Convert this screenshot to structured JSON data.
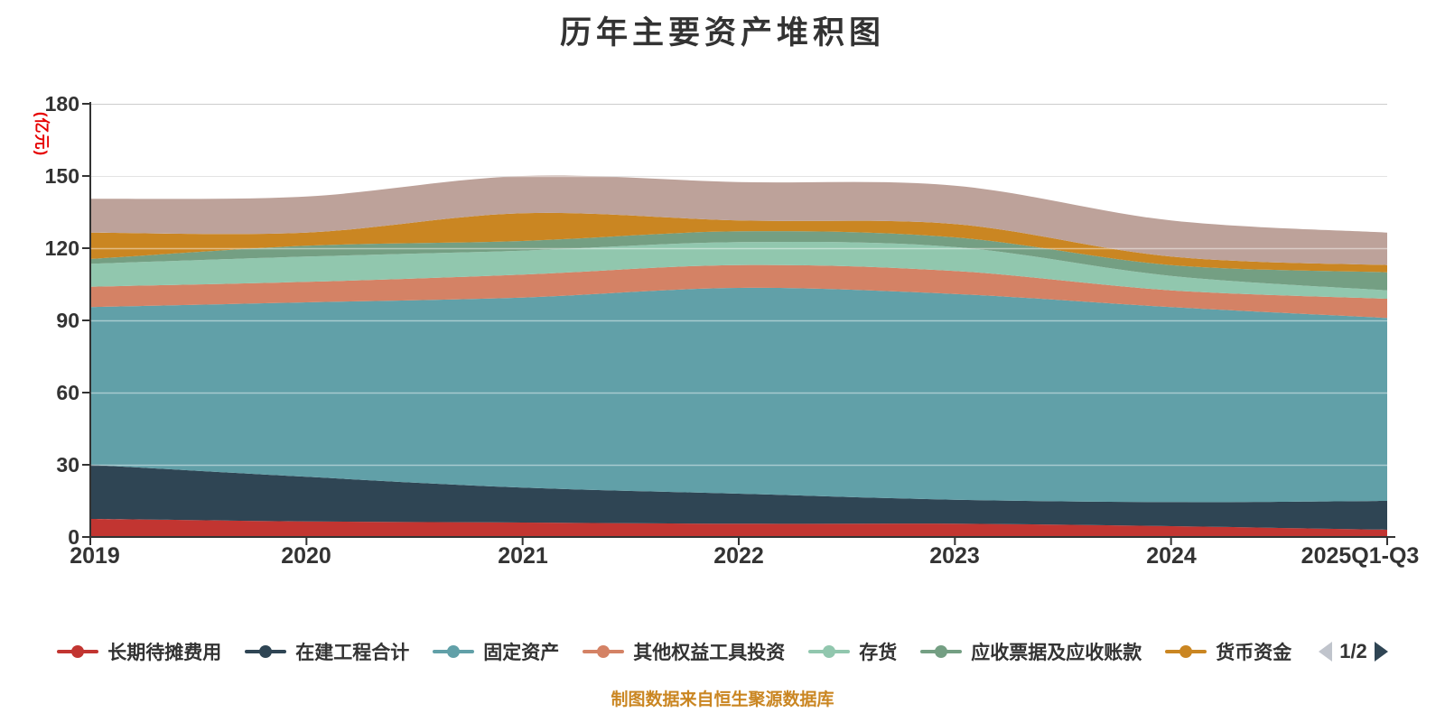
{
  "title": "历年主要资产堆积图",
  "y_axis": {
    "name": "(亿元)",
    "name_color": "#e60000",
    "tick_labels": [
      "0",
      "30",
      "60",
      "90",
      "120",
      "150",
      "180"
    ]
  },
  "x_axis": {
    "tick_labels": [
      "2019",
      "2020",
      "2021",
      "2022",
      "2023",
      "2024",
      "2025Q1-Q3"
    ]
  },
  "legend": {
    "items": [
      {
        "label": "长期待摊费用",
        "color": "#c23531"
      },
      {
        "label": "在建工程合计",
        "color": "#2f4554"
      },
      {
        "label": "固定资产",
        "color": "#61a0a8"
      },
      {
        "label": "其他权益工具投资",
        "color": "#d48265"
      },
      {
        "label": "存货",
        "color": "#91c7ae"
      },
      {
        "label": "应收票据及应收账款",
        "color": "#749f83"
      },
      {
        "label": "货币资金",
        "color": "#ca8622"
      }
    ],
    "pager": {
      "text": "1/2",
      "prev_color": "#c0c4cc",
      "next_color": "#2f4554"
    }
  },
  "footer": {
    "text": "制图数据来自恒生聚源数据库",
    "color": "#ca8622"
  },
  "chart_data": {
    "type": "area",
    "stacked": true,
    "smooth": true,
    "title": "历年主要资产堆积图",
    "ylabel": "(亿元)",
    "ylim": [
      0,
      180
    ],
    "y_tick_step": 30,
    "grid": true,
    "legend_position": "bottom",
    "categories": [
      "2019",
      "2020",
      "2021",
      "2022",
      "2023",
      "2024",
      "2025Q1-Q3"
    ],
    "series": [
      {
        "name": "长期待摊费用",
        "color": "#c23531",
        "values": [
          7.5,
          6.5,
          6,
          5.5,
          5.5,
          4.5,
          3
        ]
      },
      {
        "name": "在建工程合计",
        "color": "#2f4554",
        "values": [
          22.5,
          18.5,
          14.5,
          12.5,
          10,
          10,
          12
        ]
      },
      {
        "name": "固定资产",
        "color": "#61a0a8",
        "values": [
          65.5,
          72.5,
          79,
          85.5,
          85.5,
          81,
          76
        ]
      },
      {
        "name": "其他权益工具投资",
        "color": "#d48265",
        "values": [
          8.5,
          8.5,
          9.5,
          9.5,
          9.5,
          7,
          8
        ]
      },
      {
        "name": "存货",
        "color": "#91c7ae",
        "values": [
          9.5,
          10.5,
          10,
          9.5,
          10,
          6,
          3.5
        ]
      },
      {
        "name": "应收票据及应收账款",
        "color": "#749f83",
        "values": [
          2,
          4.5,
          4,
          4.5,
          4,
          4.5,
          7.5
        ]
      },
      {
        "name": "货币资金",
        "color": "#ca8622",
        "values": [
          11,
          5.5,
          11.5,
          4.5,
          5.5,
          3.5,
          3
        ]
      },
      {
        "name": "",
        "legend_page": 2,
        "color": "#bda29a",
        "values": [
          14,
          15,
          15.5,
          16,
          16,
          15,
          13.5
        ]
      }
    ],
    "stack_totals": [
      140.5,
      141.5,
      150,
      147.5,
      146,
      131.5,
      126.5
    ]
  }
}
